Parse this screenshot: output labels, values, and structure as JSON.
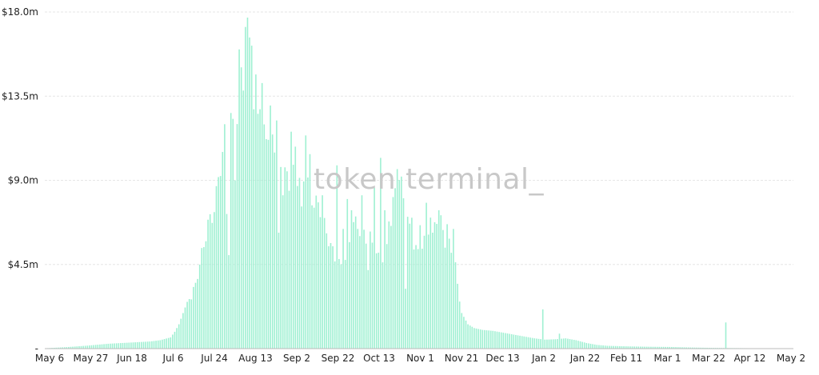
{
  "watermark": "token terminal_",
  "colors": {
    "bar": "#9ff0d2",
    "grid": "#e6e6e6",
    "axis": "#222222",
    "watermark": "#c8c8c8"
  },
  "chart_data": {
    "type": "bar",
    "title": "",
    "xlabel": "",
    "ylabel": "",
    "ylim": [
      0,
      18000000
    ],
    "grid": true,
    "legend": "none",
    "y_ticks": [
      "",
      "$4.5m",
      "$9.0m",
      "$13.5m",
      "$18.0m"
    ],
    "x_ticks": [
      "May 6",
      "May 27",
      "Jun 18",
      "Jul 6",
      "Jul 24",
      "Aug 13",
      "Sep 2",
      "Sep 22",
      "Oct 13",
      "Nov 1",
      "Nov 21",
      "Dec 13",
      "Jan 2",
      "Jan 22",
      "Feb 11",
      "Mar 1",
      "Mar 22",
      "Apr 12",
      "May 2"
    ],
    "keyframes": [
      [
        0,
        0.02
      ],
      [
        10,
        0.08
      ],
      [
        20,
        0.16
      ],
      [
        30,
        0.26
      ],
      [
        40,
        0.32
      ],
      [
        50,
        0.38
      ],
      [
        55,
        0.45
      ],
      [
        60,
        0.6
      ],
      [
        62,
        0.9
      ],
      [
        64,
        1.3
      ],
      [
        66,
        1.9
      ],
      [
        68,
        2.5
      ],
      [
        70,
        2.8
      ],
      [
        72,
        3.4
      ],
      [
        74,
        4.2
      ],
      [
        76,
        5.4
      ],
      [
        78,
        6.8
      ],
      [
        80,
        7.6
      ],
      [
        82,
        8.4
      ],
      [
        84,
        9.6
      ],
      [
        86,
        10.4
      ],
      [
        88,
        11.2
      ],
      [
        90,
        12.0
      ],
      [
        92,
        13.4
      ],
      [
        94,
        15.0
      ],
      [
        96,
        16.2
      ],
      [
        97,
        17.5
      ],
      [
        98,
        15.8
      ],
      [
        100,
        14.2
      ],
      [
        102,
        13.6
      ],
      [
        104,
        12.6
      ],
      [
        106,
        11.6
      ],
      [
        108,
        11.0
      ],
      [
        110,
        10.6
      ],
      [
        112,
        10.3
      ],
      [
        114,
        10.0
      ],
      [
        116,
        9.6
      ],
      [
        118,
        9.2
      ],
      [
        120,
        9.0
      ],
      [
        122,
        8.6
      ],
      [
        124,
        9.0
      ],
      [
        126,
        9.2
      ],
      [
        128,
        8.6
      ],
      [
        130,
        7.8
      ],
      [
        132,
        7.2
      ],
      [
        134,
        6.2
      ],
      [
        136,
        5.8
      ],
      [
        138,
        5.4
      ],
      [
        140,
        5.0
      ],
      [
        142,
        4.4
      ],
      [
        144,
        4.6
      ],
      [
        146,
        5.4
      ],
      [
        148,
        6.6
      ],
      [
        150,
        7.0
      ],
      [
        152,
        6.6
      ],
      [
        154,
        6.0
      ],
      [
        156,
        5.6
      ],
      [
        158,
        5.0
      ],
      [
        160,
        4.8
      ],
      [
        162,
        5.2
      ],
      [
        164,
        5.6
      ],
      [
        166,
        6.8
      ],
      [
        168,
        8.0
      ],
      [
        170,
        8.6
      ],
      [
        172,
        8.2
      ],
      [
        174,
        7.2
      ],
      [
        176,
        6.2
      ],
      [
        178,
        5.2
      ],
      [
        180,
        4.8
      ],
      [
        182,
        5.4
      ],
      [
        184,
        6.6
      ],
      [
        186,
        7.6
      ],
      [
        188,
        7.4
      ],
      [
        190,
        6.8
      ],
      [
        192,
        6.2
      ],
      [
        194,
        5.6
      ],
      [
        196,
        5.2
      ],
      [
        198,
        3.8
      ],
      [
        200,
        1.9
      ],
      [
        203,
        1.3
      ],
      [
        206,
        1.1
      ],
      [
        210,
        1.0
      ],
      [
        215,
        0.95
      ],
      [
        220,
        0.85
      ],
      [
        225,
        0.75
      ],
      [
        230,
        0.65
      ],
      [
        235,
        0.55
      ],
      [
        240,
        0.48
      ],
      [
        245,
        0.5
      ],
      [
        250,
        0.55
      ],
      [
        255,
        0.45
      ],
      [
        260,
        0.3
      ],
      [
        265,
        0.2
      ],
      [
        270,
        0.15
      ],
      [
        280,
        0.12
      ],
      [
        290,
        0.1
      ],
      [
        300,
        0.09
      ],
      [
        310,
        0.06
      ],
      [
        320,
        0.04
      ],
      [
        330,
        0.03
      ],
      [
        340,
        0.02
      ],
      [
        359,
        0.01
      ]
    ],
    "spikes": [
      [
        86,
        12.0
      ],
      [
        87,
        7.2
      ],
      [
        88,
        5.0
      ],
      [
        89,
        12.6
      ],
      [
        91,
        9.0
      ],
      [
        93,
        16.0
      ],
      [
        95,
        13.8
      ],
      [
        96,
        17.2
      ],
      [
        97,
        17.7
      ],
      [
        99,
        16.2
      ],
      [
        100,
        12.8
      ],
      [
        103,
        12.8
      ],
      [
        104,
        14.2
      ],
      [
        106,
        11.2
      ],
      [
        108,
        13.0
      ],
      [
        111,
        12.2
      ],
      [
        112,
        6.2
      ],
      [
        114,
        8.2
      ],
      [
        118,
        11.6
      ],
      [
        120,
        10.8
      ],
      [
        123,
        7.6
      ],
      [
        125,
        11.4
      ],
      [
        127,
        10.4
      ],
      [
        133,
        8.2
      ],
      [
        140,
        9.8
      ],
      [
        143,
        6.4
      ],
      [
        145,
        8.0
      ],
      [
        147,
        7.4
      ],
      [
        150,
        6.4
      ],
      [
        152,
        8.2
      ],
      [
        155,
        4.2
      ],
      [
        158,
        8.6
      ],
      [
        161,
        10.2
      ],
      [
        163,
        7.4
      ],
      [
        165,
        6.8
      ],
      [
        169,
        9.6
      ],
      [
        171,
        9.2
      ],
      [
        173,
        3.2
      ],
      [
        176,
        7.0
      ],
      [
        180,
        6.6
      ],
      [
        183,
        7.8
      ],
      [
        186,
        6.2
      ],
      [
        189,
        7.4
      ],
      [
        192,
        5.4
      ],
      [
        196,
        6.4
      ],
      [
        239,
        2.1
      ],
      [
        247,
        0.8
      ],
      [
        327,
        1.4
      ]
    ]
  }
}
